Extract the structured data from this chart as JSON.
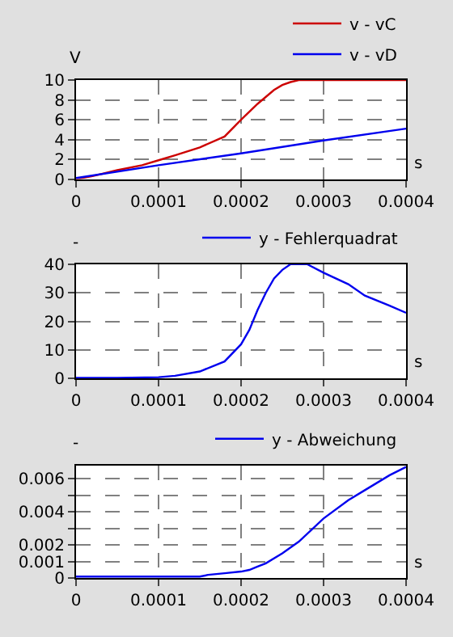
{
  "chart_data": [
    {
      "type": "line",
      "xlabel": "s",
      "ylabel": "V",
      "xlim": [
        0,
        0.0004
      ],
      "xticks": [
        0,
        0.0001,
        0.0002,
        0.0003,
        0.0004
      ],
      "ylim": [
        0,
        10
      ],
      "yticks": [
        0,
        2,
        4,
        6,
        8,
        10
      ],
      "grid": true,
      "legend": "top right",
      "line_style": "solid",
      "series": [
        {
          "name": "v - vC",
          "color": "#cc0000",
          "x": [
            0,
            2e-05,
            5e-05,
            8e-05,
            0.0001,
            0.00012,
            0.00015,
            0.00018,
            0.0002,
            0.00022,
            0.00024,
            0.00025,
            0.00026,
            0.00027,
            0.0003,
            0.00035,
            0.0004
          ],
          "values": [
            0,
            0.3,
            0.9,
            1.4,
            1.9,
            2.4,
            3.2,
            4.3,
            6.0,
            7.6,
            9.0,
            9.5,
            9.8,
            10,
            10,
            10,
            10
          ]
        },
        {
          "name": "v - vD",
          "color": "#0000ee",
          "x": [
            0,
            0.0001,
            0.0002,
            0.0003,
            0.0004
          ],
          "values": [
            0.1,
            1.4,
            2.6,
            3.9,
            5.1
          ]
        }
      ]
    },
    {
      "type": "line",
      "xlabel": "s",
      "ylabel": "-",
      "xlim": [
        0,
        0.0004
      ],
      "xticks": [
        0,
        0.0001,
        0.0002,
        0.0003,
        0.0004
      ],
      "ylim": [
        0,
        40
      ],
      "yticks": [
        0,
        10,
        20,
        30,
        40
      ],
      "grid": true,
      "legend": "top right",
      "line_style": "solid",
      "series": [
        {
          "name": "y - Fehlerquadrat",
          "color": "#0000ee",
          "x": [
            0,
            5e-05,
            0.0001,
            0.00012,
            0.00015,
            0.00018,
            0.0002,
            0.00021,
            0.00022,
            0.00023,
            0.00024,
            0.00025,
            0.00026,
            0.00028,
            0.0003,
            0.00033,
            0.00035,
            0.00038,
            0.0004
          ],
          "values": [
            0.3,
            0.3,
            0.5,
            1,
            2.5,
            6,
            12,
            17,
            24,
            30,
            35,
            38,
            40,
            40,
            37,
            33,
            29,
            25.5,
            23
          ]
        }
      ]
    },
    {
      "type": "line",
      "xlabel": "s",
      "ylabel": "-",
      "xlim": [
        0,
        0.0004
      ],
      "xticks": [
        0,
        0.0001,
        0.0002,
        0.0003,
        0.0004
      ],
      "ylim": [
        0,
        0.0068
      ],
      "yticks": [
        0,
        0.001,
        0.002,
        {
          "value": 0.003,
          "label": null
        },
        0.004,
        {
          "value": 0.005,
          "label": null
        },
        0.006
      ],
      "grid": true,
      "legend": "top right",
      "line_style": "solid",
      "series": [
        {
          "name": "y - Abweichung",
          "color": "#0000ee",
          "x": [
            0,
            5e-05,
            0.0001,
            0.00015,
            0.00016,
            0.00018,
            0.0002,
            0.00021,
            0.00022,
            0.00023,
            0.00025,
            0.00027,
            0.0003,
            0.00033,
            0.00035,
            0.00038,
            0.0004
          ],
          "values": [
            0.0001,
            0.0001,
            0.0001,
            0.0001,
            0.0002,
            0.0003,
            0.0004,
            0.0005,
            0.0007,
            0.0009,
            0.0015,
            0.0022,
            0.0036,
            0.0047,
            0.0053,
            0.0062,
            0.0067
          ]
        }
      ]
    }
  ]
}
